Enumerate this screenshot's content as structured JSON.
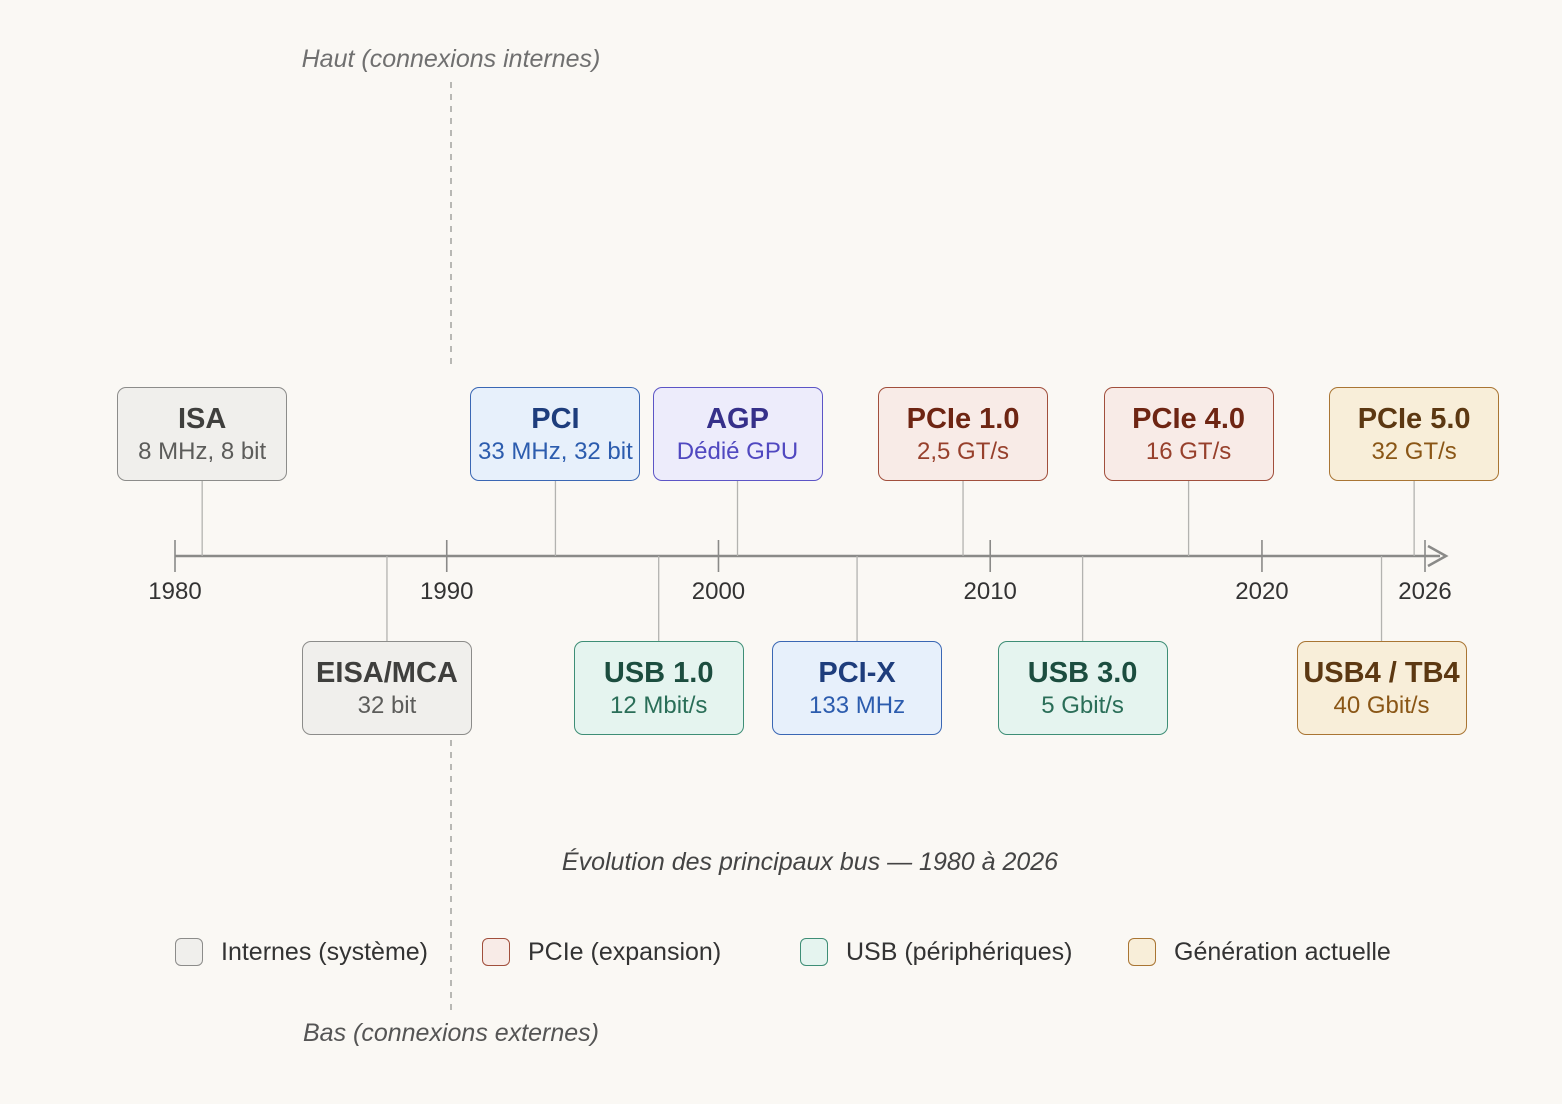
{
  "regions": {
    "top_label": "Haut (connexions internes)",
    "bottom_label": "Bas (connexions externes)"
  },
  "timeline": {
    "start_year": 1980,
    "end_year": 2026,
    "ticks": [
      "1980",
      "1990",
      "2000",
      "2010",
      "2020",
      "2026"
    ]
  },
  "palettes": {
    "gray": {
      "fill": "#f0efec",
      "stroke": "#8c8c8a",
      "name": "#3f3f3d",
      "detail": "#5c5c5a"
    },
    "blue": {
      "fill": "#e7f0fb",
      "stroke": "#3a67b4",
      "name": "#1e3d7c",
      "detail": "#2c5cae"
    },
    "purple": {
      "fill": "#edecfb",
      "stroke": "#5c55c6",
      "name": "#36308a",
      "detail": "#5048c0"
    },
    "red": {
      "fill": "#f8ebe7",
      "stroke": "#a14f3c",
      "name": "#6e2513",
      "detail": "#97402c"
    },
    "green": {
      "fill": "#e5f4ef",
      "stroke": "#3e8e76",
      "name": "#1c4d3f",
      "detail": "#2a6e58"
    },
    "amber": {
      "fill": "#f8eed9",
      "stroke": "#a97533",
      "name": "#5c3812",
      "detail": "#8a5616"
    }
  },
  "buses_top": [
    {
      "name": "ISA",
      "detail": "8 MHz, 8 bit",
      "year": 1981,
      "palette": "gray"
    },
    {
      "name": "PCI",
      "detail": "33 MHz, 32 bit",
      "year": 1994,
      "palette": "blue"
    },
    {
      "name": "AGP",
      "detail": "Dédié GPU",
      "year": 2000.7,
      "palette": "purple"
    },
    {
      "name": "PCIe 1.0",
      "detail": "2,5 GT/s",
      "year": 2009,
      "palette": "red"
    },
    {
      "name": "PCIe 4.0",
      "detail": "16 GT/s",
      "year": 2017.3,
      "palette": "red"
    },
    {
      "name": "PCIe 5.0",
      "detail": "32 GT/s",
      "year": 2025.6,
      "palette": "amber"
    }
  ],
  "buses_bottom": [
    {
      "name": "EISA/MCA",
      "detail": "32 bit",
      "year": 1987.8,
      "palette": "gray"
    },
    {
      "name": "USB 1.0",
      "detail": "12 Mbit/s",
      "year": 1997.8,
      "palette": "green"
    },
    {
      "name": "PCI-X",
      "detail": "133 MHz",
      "year": 2005.1,
      "palette": "blue"
    },
    {
      "name": "USB 3.0",
      "detail": "5 Gbit/s",
      "year": 2013.4,
      "palette": "green"
    },
    {
      "name": "USB4 / TB4",
      "detail": "40 Gbit/s",
      "year": 2024.4,
      "palette": "amber"
    }
  ],
  "caption": "Évolution des principaux bus — 1980 à 2026",
  "legend": [
    {
      "label": "Internes (système)",
      "palette": "gray"
    },
    {
      "label": "PCIe (expansion)",
      "palette": "red"
    },
    {
      "label": "USB (périphériques)",
      "palette": "green"
    },
    {
      "label": "Génération actuelle",
      "palette": "amber"
    }
  ]
}
